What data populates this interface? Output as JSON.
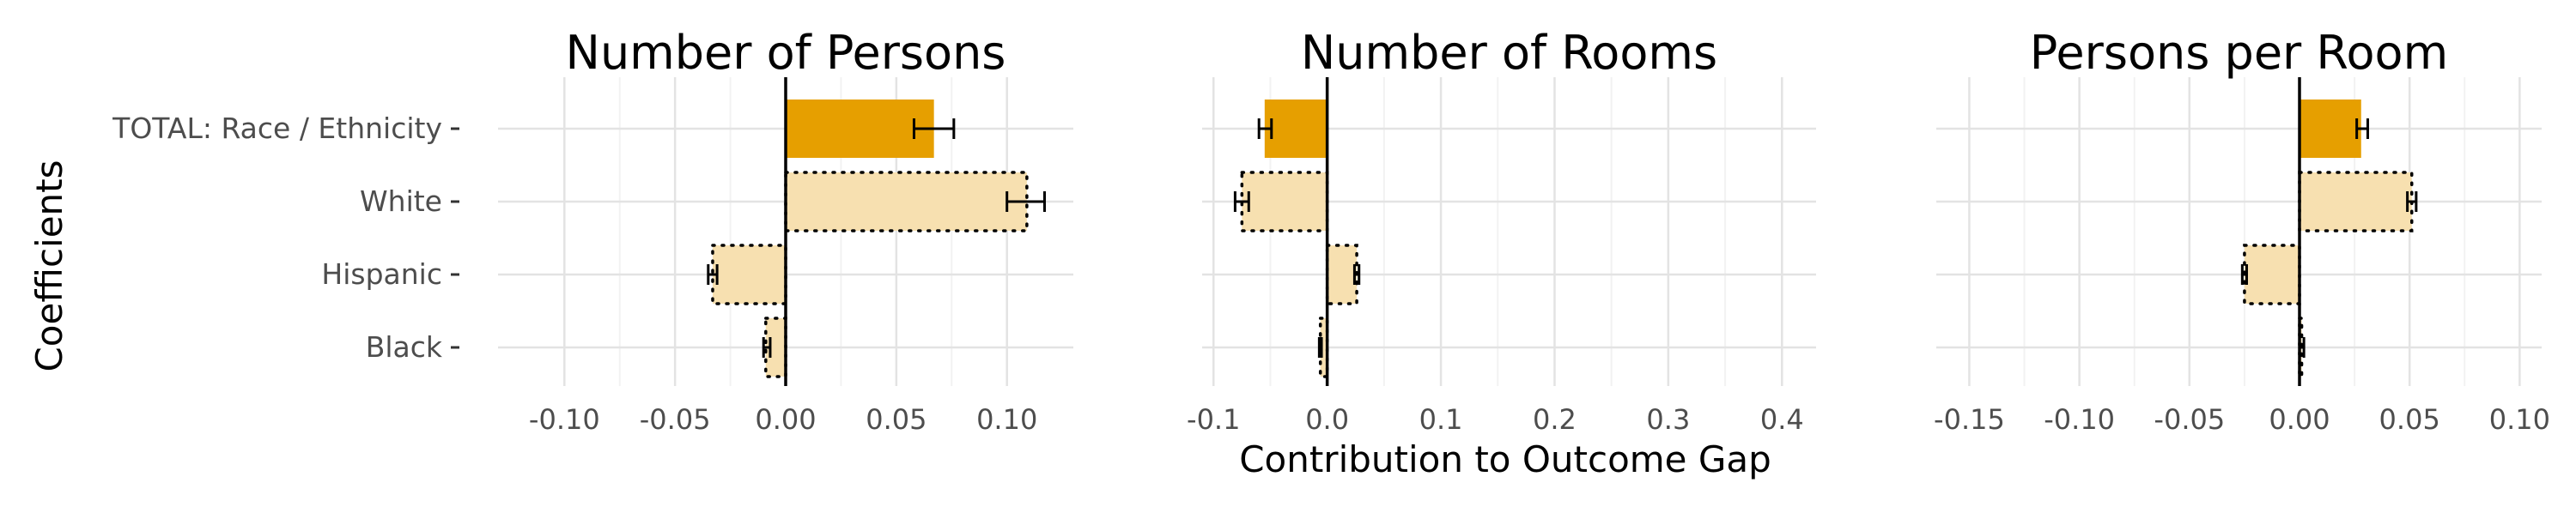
{
  "chart_data": {
    "type": "bar",
    "orientation": "horizontal",
    "ylabel": "Coefficients",
    "xlabel": "Contribution to Outcome Gap",
    "categories": [
      "TOTAL: Race / Ethnicity",
      "White",
      "Hispanic",
      "Black"
    ],
    "grid": true,
    "colors": {
      "total": "#E69F00",
      "component": "#F7E0B0",
      "zero_line": "#000000"
    },
    "panels": [
      {
        "title": "Number of Persons",
        "xlim": [
          -0.13,
          0.13
        ],
        "ticks": [
          -0.1,
          -0.05,
          0.0,
          0.05,
          0.1
        ],
        "tick_labels": [
          "-0.10",
          "-0.05",
          "0.00",
          "0.05",
          "0.10"
        ],
        "bars": [
          {
            "category": "TOTAL: Race / Ethnicity",
            "value": 0.067,
            "ci": [
              0.058,
              0.076
            ],
            "style": "total"
          },
          {
            "category": "White",
            "value": 0.109,
            "ci": [
              0.1,
              0.117
            ],
            "style": "component"
          },
          {
            "category": "Hispanic",
            "value": -0.033,
            "ci": [
              -0.035,
              -0.031
            ],
            "style": "component"
          },
          {
            "category": "Black",
            "value": -0.009,
            "ci": [
              -0.01,
              -0.007
            ],
            "style": "component"
          }
        ]
      },
      {
        "title": "Number of Rooms",
        "xlim": [
          -0.11,
          0.43
        ],
        "ticks": [
          -0.1,
          0.0,
          0.1,
          0.2,
          0.3,
          0.4
        ],
        "tick_labels": [
          "-0.1",
          "0.0",
          "0.1",
          "0.2",
          "0.3",
          "0.4"
        ],
        "bars": [
          {
            "category": "TOTAL: Race / Ethnicity",
            "value": -0.055,
            "ci": [
              -0.06,
              -0.049
            ],
            "style": "total"
          },
          {
            "category": "White",
            "value": -0.075,
            "ci": [
              -0.081,
              -0.069
            ],
            "style": "component"
          },
          {
            "category": "Hispanic",
            "value": 0.026,
            "ci": [
              0.024,
              0.028
            ],
            "style": "component"
          },
          {
            "category": "Black",
            "value": -0.006,
            "ci": [
              -0.007,
              -0.005
            ],
            "style": "component"
          }
        ]
      },
      {
        "title": "Persons per Room",
        "xlim": [
          -0.165,
          0.11
        ],
        "ticks": [
          -0.15,
          -0.1,
          -0.05,
          0.0,
          0.05,
          0.1
        ],
        "tick_labels": [
          "-0.15",
          "-0.10",
          "-0.05",
          "0.00",
          "0.05",
          "0.10"
        ],
        "bars": [
          {
            "category": "TOTAL: Race / Ethnicity",
            "value": 0.028,
            "ci": [
              0.026,
              0.031
            ],
            "style": "total"
          },
          {
            "category": "White",
            "value": 0.051,
            "ci": [
              0.049,
              0.053
            ],
            "style": "component"
          },
          {
            "category": "Hispanic",
            "value": -0.025,
            "ci": [
              -0.026,
              -0.024
            ],
            "style": "component"
          },
          {
            "category": "Black",
            "value": 0.001,
            "ci": [
              0.0,
              0.002
            ],
            "style": "component"
          }
        ]
      }
    ]
  }
}
